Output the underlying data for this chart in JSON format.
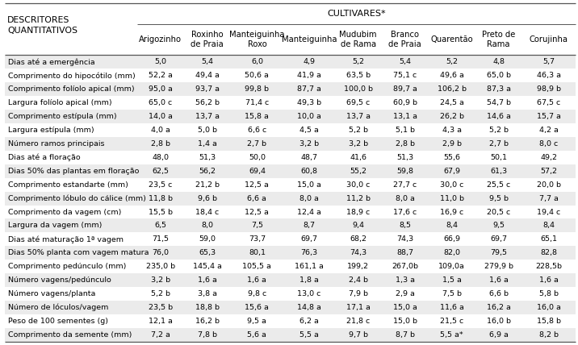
{
  "title": "CULTIVARES*",
  "cultivar_names": [
    "Arigozinho",
    "Roxinho\nde Praia",
    "Manteiguinha\nRoxo",
    "Manteiguinha",
    "Mudubim\nde Rama",
    "Branco\nde Praia",
    "Quarentão",
    "Preto de\nRama",
    "Corujinha"
  ],
  "rows": [
    [
      "Dias até a emergência",
      "5,0",
      "5,4",
      "6,0",
      "4,9",
      "5,2",
      "5,4",
      "5,2",
      "4,8",
      "5,7"
    ],
    [
      "Comprimento do hipocótilo (mm)",
      "52,2 a",
      "49,4 a",
      "50,6 a",
      "41,9 a",
      "63,5 b",
      "75,1 c",
      "49,6 a",
      "65,0 b",
      "46,3 a"
    ],
    [
      "Comprimento folíolo apical (mm)",
      "95,0 a",
      "93,7 a",
      "99,8 b",
      "87,7 a",
      "100,0 b",
      "89,7 a",
      "106,2 b",
      "87,3 a",
      "98,9 b"
    ],
    [
      "Largura folíolo apical (mm)",
      "65,0 c",
      "56,2 b",
      "71,4 c",
      "49,3 b",
      "69,5 c",
      "60,9 b",
      "24,5 a",
      "54,7 b",
      "67,5 c"
    ],
    [
      "Comprimento estípula (mm)",
      "14,0 a",
      "13,7 a",
      "15,8 a",
      "10,0 a",
      "13,7 a",
      "13,1 a",
      "26,2 b",
      "14,6 a",
      "15,7 a"
    ],
    [
      "Largura estípula (mm)",
      "4,0 a",
      "5,0 b",
      "6,6 c",
      "4,5 a",
      "5,2 b",
      "5,1 b",
      "4,3 a",
      "5,2 b",
      "4,2 a"
    ],
    [
      "Número ramos principais",
      "2,8 b",
      "1,4 a",
      "2,7 b",
      "3,2 b",
      "3,2 b",
      "2,8 b",
      "2,9 b",
      "2,7 b",
      "8,0 c"
    ],
    [
      "Dias até a floração",
      "48,0",
      "51,3",
      "50,0",
      "48,7",
      "41,6",
      "51,3",
      "55,6",
      "50,1",
      "49,2"
    ],
    [
      "Dias 50% das plantas em floração",
      "62,5",
      "56,2",
      "69,4",
      "60,8",
      "55,2",
      "59,8",
      "67,9",
      "61,3",
      "57,2"
    ],
    [
      "Comprimento estandarte (mm)",
      "23,5 c",
      "21,2 b",
      "12,5 a",
      "15,0 a",
      "30,0 c",
      "27,7 c",
      "30,0 c",
      "25,5 c",
      "20,0 b"
    ],
    [
      "Comprimento lóbulo do cálice (mm)",
      "11,8 b",
      "9,6 b",
      "6,6 a",
      "8,0 a",
      "11,2 b",
      "8,0 a",
      "11,0 b",
      "9,5 b",
      "7,7 a"
    ],
    [
      "Comprimento da vagem (cm)",
      "15,5 b",
      "18,4 c",
      "12,5 a",
      "12,4 a",
      "18,9 c",
      "17,6 c",
      "16,9 c",
      "20,5 c",
      "19,4 c"
    ],
    [
      "Largura da vagem (mm)",
      "6,5",
      "8,0",
      "7,5",
      "8,7",
      "9,4",
      "8,5",
      "8,4",
      "9,5",
      "8,4"
    ],
    [
      "Dias até maturação 1ª vagem",
      "71,5",
      "59,0",
      "73,7",
      "69,7",
      "68,2",
      "74,3",
      "66,9",
      "69,7",
      "65,1"
    ],
    [
      "Dias 50% planta com vagem matura",
      "76,0",
      "65,3",
      "80,1",
      "76,3",
      "74,3",
      "88,7",
      "82,0",
      "79,5",
      "82,8"
    ],
    [
      "Comprimento pedúnculo (mm)",
      "235,0 b",
      "145,4 a",
      "105,5 a",
      "161,1 a",
      "199,2",
      "267,0b",
      "109,0a",
      "279,9 b",
      "228,5b"
    ],
    [
      "Número vagens/pedúnculo",
      "3,2 b",
      "1,6 a",
      "1,6 a",
      "1,8 a",
      "2,4 b",
      "1,3 a",
      "1,5 a",
      "1,6 a",
      "1,6 a"
    ],
    [
      "Número vagens/planta",
      "5,2 b",
      "3,8 a",
      "9,8 c",
      "13,0 c",
      "7,9 b",
      "2,9 a",
      "7,5 b",
      "6,6 b",
      "5,8 b"
    ],
    [
      "Número de lóculos/vagem",
      "23,5 b",
      "18,8 b",
      "15,6 a",
      "14,8 a",
      "17,1 a",
      "15,0 a",
      "11,6 a",
      "16,2 a",
      "16,0 a"
    ],
    [
      "Peso de 100 sementes (g)",
      "12,1 a",
      "16,2 b",
      "9,5 a",
      "6,2 a",
      "21,8 c",
      "15,0 b",
      "21,5 c",
      "16,0 b",
      "15,8 b"
    ],
    [
      "Comprimento da semente (mm)",
      "7,2 a",
      "7,8 b",
      "5,6 a",
      "5,5 a",
      "9,7 b",
      "8,7 b",
      "5,5 a*",
      "6,9 a",
      "8,2 b"
    ]
  ],
  "bg_odd": "#ebebeb",
  "bg_even": "#ffffff",
  "bg_header": "#ffffff",
  "line_color": "#555555",
  "text_color": "#000000",
  "data_fontsize": 6.8,
  "header_fontsize": 7.2,
  "title_fontsize": 8.0,
  "desc_fontsize": 7.8
}
